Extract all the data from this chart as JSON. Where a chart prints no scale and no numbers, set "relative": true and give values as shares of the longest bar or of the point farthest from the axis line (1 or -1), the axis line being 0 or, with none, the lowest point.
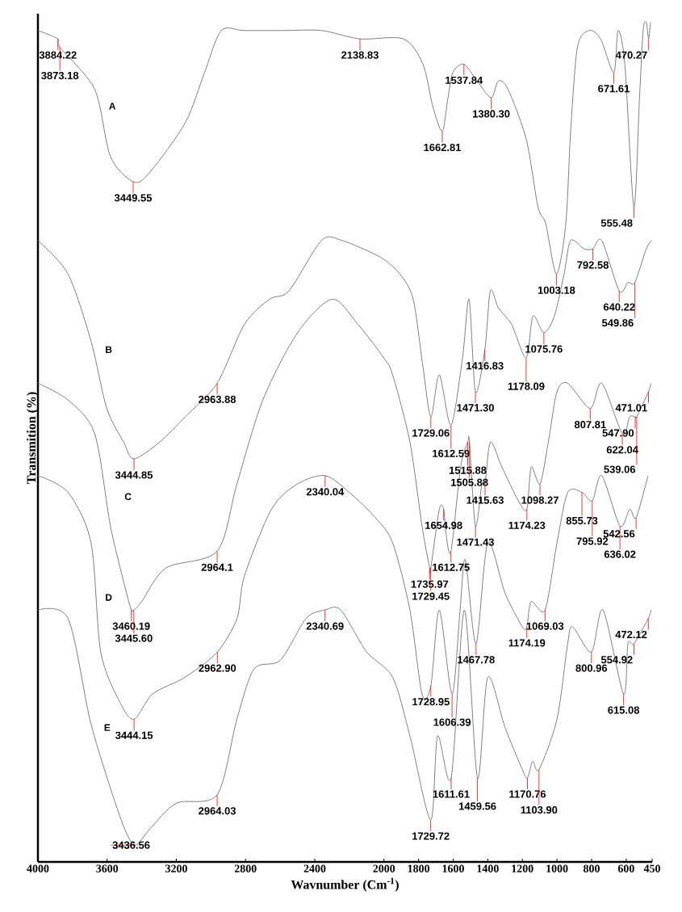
{
  "chart_data": {
    "type": "line",
    "relative": true,
    "xlabel": "Wavnumber (Cm$^{-1}$)",
    "ylabel": "Transmition (%)",
    "xlim": [
      4000,
      450
    ],
    "xticks": [
      4000,
      3600,
      3200,
      2800,
      2400,
      2000,
      1800,
      1600,
      1400,
      1200,
      1000,
      800,
      600,
      450
    ],
    "grid": false,
    "marker": "none",
    "line_style": "solid",
    "tick_labels": "x",
    "series": [
      {
        "name": "A",
        "color": "#808080",
        "x": [
          4000,
          3884.22,
          3873.18,
          3672,
          3581,
          3449.55,
          3358,
          3149,
          3037,
          2940,
          2807,
          2584,
          2361,
          2138.83,
          1887,
          1775,
          1718,
          1662.81,
          1630,
          1602,
          1537.84,
          1462,
          1380.3,
          1339,
          1283,
          1177,
          1110,
          1065,
          1003.18,
          949,
          921,
          882,
          815,
          748,
          671.61,
          647,
          608,
          555.48,
          523,
          502,
          484,
          470.27,
          460
        ],
        "values": [
          0.99,
          0.98,
          0.97,
          0.92,
          0.84,
          0.81,
          0.82,
          0.88,
          0.94,
          0.99,
          0.99,
          0.99,
          0.99,
          0.98,
          0.98,
          0.95,
          0.9,
          0.87,
          0.91,
          0.94,
          0.95,
          0.93,
          0.91,
          0.93,
          0.92,
          0.86,
          0.78,
          0.76,
          0.7,
          0.76,
          0.87,
          0.97,
          0.99,
          0.98,
          0.94,
          0.99,
          0.95,
          0.78,
          0.91,
          0.99,
          1.0,
          0.98,
          1.0
        ]
      },
      {
        "name": "B",
        "color": "#808080",
        "x": [
          4000,
          3826,
          3693,
          3602,
          3505,
          3444.85,
          3296,
          3149,
          2963.88,
          2807,
          2661,
          2549,
          2361,
          2243,
          2020,
          1908,
          1831,
          1775,
          1729.06,
          1680,
          1612.59,
          1546,
          1508,
          1471.3,
          1416.83,
          1385,
          1339,
          1262,
          1178.09,
          1139,
          1075.76,
          1015,
          959,
          921,
          843,
          792.58,
          741,
          640.22,
          590,
          549.86,
          484,
          452
        ],
        "values": [
          0.74,
          0.7,
          0.62,
          0.54,
          0.5,
          0.48,
          0.5,
          0.53,
          0.57,
          0.64,
          0.67,
          0.68,
          0.74,
          0.74,
          0.72,
          0.7,
          0.67,
          0.59,
          0.53,
          0.58,
          0.52,
          0.6,
          0.67,
          0.56,
          0.61,
          0.68,
          0.66,
          0.64,
          0.6,
          0.65,
          0.63,
          0.65,
          0.7,
          0.74,
          0.73,
          0.73,
          0.74,
          0.68,
          0.69,
          0.69,
          0.73,
          0.74
        ]
      },
      {
        "name": "C",
        "color": "#808080",
        "x": [
          4000,
          3826,
          3672,
          3581,
          3500,
          3460.19,
          3445.6,
          3400,
          3261,
          2964.1,
          2850,
          2700,
          2500,
          2300,
          2150,
          2000,
          1950,
          1850,
          1780,
          1735.97,
          1729.45,
          1680,
          1654.98,
          1641,
          1612.75,
          1557,
          1515.88,
          1505.88,
          1471.43,
          1434,
          1415.63,
          1385,
          1318,
          1223,
          1174.23,
          1149,
          1098.27,
          1050,
          1000,
          938,
          807.81,
          741,
          622.04,
          580,
          547.9,
          539.06,
          471.01,
          457
        ],
        "values": [
          0.57,
          0.55,
          0.51,
          0.4,
          0.33,
          0.3,
          0.3,
          0.31,
          0.35,
          0.37,
          0.45,
          0.55,
          0.63,
          0.67,
          0.64,
          0.6,
          0.58,
          0.5,
          0.4,
          0.35,
          0.35,
          0.42,
          0.42,
          0.39,
          0.37,
          0.47,
          0.5,
          0.5,
          0.4,
          0.45,
          0.45,
          0.5,
          0.47,
          0.43,
          0.42,
          0.47,
          0.45,
          0.5,
          0.56,
          0.57,
          0.54,
          0.57,
          0.51,
          0.53,
          0.53,
          0.53,
          0.56,
          0.57
        ]
      },
      {
        "name": "D",
        "color": "#808080",
        "x": [
          4000,
          3826,
          3693,
          3637,
          3526,
          3444.15,
          3337,
          3149,
          2962.9,
          2849,
          2807,
          2650,
          2500,
          2340.04,
          2200,
          2050,
          1950,
          1850,
          1780,
          1728.95,
          1680,
          1606.39,
          1560,
          1530,
          1467.78,
          1400,
          1300,
          1200,
          1174.19,
          1149,
          1069.03,
          1000,
          938,
          855.73,
          795.92,
          741,
          636.02,
          580,
          542.56,
          474
        ],
        "values": [
          0.46,
          0.44,
          0.38,
          0.25,
          0.19,
          0.17,
          0.2,
          0.22,
          0.25,
          0.29,
          0.34,
          0.42,
          0.45,
          0.46,
          0.44,
          0.41,
          0.38,
          0.3,
          0.2,
          0.21,
          0.3,
          0.2,
          0.3,
          0.36,
          0.26,
          0.38,
          0.32,
          0.28,
          0.28,
          0.31,
          0.3,
          0.38,
          0.44,
          0.44,
          0.43,
          0.46,
          0.4,
          0.42,
          0.41,
          0.46
        ]
      },
      {
        "name": "E",
        "color": "#808080",
        "x": [
          4000,
          3826,
          3700,
          3600,
          3500,
          3436.56,
          3350,
          3200,
          2964.03,
          2850,
          2750,
          2600,
          2450,
          2340.69,
          2250,
          2100,
          1950,
          1850,
          1729.72,
          1690,
          1611.61,
          1535,
          1459.56,
          1400,
          1300,
          1200,
          1170.76,
          1140,
          1103.9,
          1000,
          938,
          910,
          800.96,
          734,
          615.08,
          590,
          554.92,
          472.12,
          457
        ],
        "values": [
          0.3,
          0.29,
          0.17,
          0.1,
          0.04,
          0.02,
          0.04,
          0.07,
          0.08,
          0.17,
          0.23,
          0.24,
          0.29,
          0.3,
          0.3,
          0.25,
          0.22,
          0.15,
          0.05,
          0.15,
          0.1,
          0.3,
          0.1,
          0.22,
          0.16,
          0.11,
          0.1,
          0.12,
          0.11,
          0.17,
          0.26,
          0.28,
          0.25,
          0.3,
          0.2,
          0.26,
          0.26,
          0.29,
          0.3
        ]
      }
    ],
    "annotations": [
      {
        "text": "3884.22",
        "x": 3884.22,
        "y": 0.98
      },
      {
        "text": "3873.18",
        "x": 3873.18,
        "y": 0.97
      },
      {
        "text": "3449.55",
        "x": 3449.55,
        "y": 0.81
      },
      {
        "text": "2138.83",
        "x": 2138.83,
        "y": 0.98
      },
      {
        "text": "1662.81",
        "x": 1662.81,
        "y": 0.87
      },
      {
        "text": "1537.84",
        "x": 1537.84,
        "y": 0.95
      },
      {
        "text": "1380.30",
        "x": 1380.3,
        "y": 0.91
      },
      {
        "text": "1003.18",
        "x": 1003.18,
        "y": 0.7
      },
      {
        "text": "671.61",
        "x": 671.61,
        "y": 0.94
      },
      {
        "text": "555.48",
        "x": 555.48,
        "y": 0.78
      },
      {
        "text": "470.27",
        "x": 470.27,
        "y": 0.98
      },
      {
        "text": "3444.85",
        "x": 3444.85,
        "y": 0.48
      },
      {
        "text": "2963.88",
        "x": 2963.88,
        "y": 0.57
      },
      {
        "text": "1729.06",
        "x": 1729.06,
        "y": 0.53
      },
      {
        "text": "1612.59",
        "x": 1612.59,
        "y": 0.52
      },
      {
        "text": "1471.30",
        "x": 1471.3,
        "y": 0.56
      },
      {
        "text": "1416.83",
        "x": 1416.83,
        "y": 0.61
      },
      {
        "text": "1178.09",
        "x": 1178.09,
        "y": 0.6
      },
      {
        "text": "1075.76",
        "x": 1075.76,
        "y": 0.63
      },
      {
        "text": "792.58",
        "x": 792.58,
        "y": 0.73
      },
      {
        "text": "640.22",
        "x": 640.22,
        "y": 0.68
      },
      {
        "text": "549.86",
        "x": 549.86,
        "y": 0.69
      },
      {
        "text": "3460.19",
        "x": 3460.19,
        "y": 0.3
      },
      {
        "text": "3445.60",
        "x": 3445.6,
        "y": 0.3
      },
      {
        "text": "2964.1",
        "x": 2964.1,
        "y": 0.37
      },
      {
        "text": "1735.97",
        "x": 1735.97,
        "y": 0.35
      },
      {
        "text": "1729.45",
        "x": 1729.45,
        "y": 0.35
      },
      {
        "text": "1654.98",
        "x": 1654.98,
        "y": 0.42
      },
      {
        "text": "1612.75",
        "x": 1612.75,
        "y": 0.37
      },
      {
        "text": "1515.88",
        "x": 1515.88,
        "y": 0.5
      },
      {
        "text": "1505.88",
        "x": 1505.88,
        "y": 0.5
      },
      {
        "text": "1471.43",
        "x": 1471.43,
        "y": 0.4
      },
      {
        "text": "1415.63",
        "x": 1415.63,
        "y": 0.45
      },
      {
        "text": "1174.23",
        "x": 1174.23,
        "y": 0.42
      },
      {
        "text": "1098.27",
        "x": 1098.27,
        "y": 0.45
      },
      {
        "text": "807.81",
        "x": 807.81,
        "y": 0.54
      },
      {
        "text": "622.04",
        "x": 622.04,
        "y": 0.51
      },
      {
        "text": "547.90",
        "x": 547.9,
        "y": 0.53
      },
      {
        "text": "539.06",
        "x": 539.06,
        "y": 0.53
      },
      {
        "text": "471.01",
        "x": 471.01,
        "y": 0.56
      },
      {
        "text": "3444.15",
        "x": 3444.15,
        "y": 0.17
      },
      {
        "text": "2962.90",
        "x": 2962.9,
        "y": 0.25
      },
      {
        "text": "2340.04",
        "x": 2340.04,
        "y": 0.46
      },
      {
        "text": "1728.95",
        "x": 1728.95,
        "y": 0.21
      },
      {
        "text": "1606.39",
        "x": 1606.39,
        "y": 0.2
      },
      {
        "text": "1467.78",
        "x": 1467.78,
        "y": 0.26
      },
      {
        "text": "1174.19",
        "x": 1174.19,
        "y": 0.28
      },
      {
        "text": "1069.03",
        "x": 1069.03,
        "y": 0.3
      },
      {
        "text": "855.73",
        "x": 855.73,
        "y": 0.44
      },
      {
        "text": "795.92",
        "x": 795.92,
        "y": 0.43
      },
      {
        "text": "636.02",
        "x": 636.02,
        "y": 0.4
      },
      {
        "text": "542.56",
        "x": 542.56,
        "y": 0.41
      },
      {
        "text": "3436.56",
        "x": 3436.56,
        "y": 0.02
      },
      {
        "text": "2964.03",
        "x": 2964.03,
        "y": 0.08
      },
      {
        "text": "2340.69",
        "x": 2340.69,
        "y": 0.3
      },
      {
        "text": "1729.72",
        "x": 1729.72,
        "y": 0.05
      },
      {
        "text": "1611.61",
        "x": 1611.61,
        "y": 0.1
      },
      {
        "text": "1459.56",
        "x": 1459.56,
        "y": 0.1
      },
      {
        "text": "1170.76",
        "x": 1170.76,
        "y": 0.1
      },
      {
        "text": "1103.90",
        "x": 1103.9,
        "y": 0.11
      },
      {
        "text": "800.96",
        "x": 800.96,
        "y": 0.25
      },
      {
        "text": "615.08",
        "x": 615.08,
        "y": 0.2
      },
      {
        "text": "554.92",
        "x": 554.92,
        "y": 0.26
      },
      {
        "text": "472.12",
        "x": 472.12,
        "y": 0.29
      }
    ]
  }
}
